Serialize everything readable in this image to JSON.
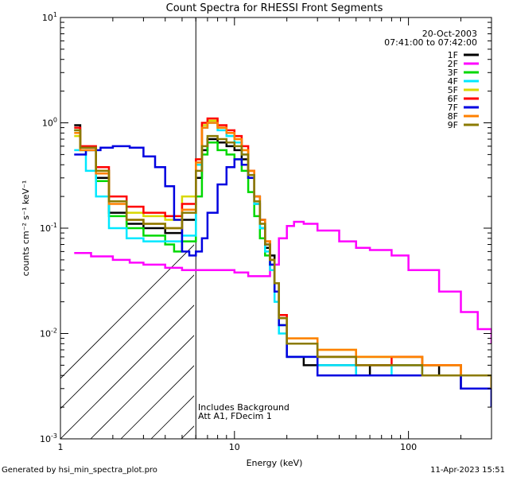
{
  "chart_data": {
    "type": "line",
    "title": "Count Spectra for RHESSI Front Segments",
    "xlabel": "Energy (keV)",
    "ylabel": "counts cm⁻² s⁻¹ keV⁻¹",
    "xscale": "log",
    "yscale": "log",
    "xlim": [
      1,
      300
    ],
    "ylim": [
      0.001,
      10
    ],
    "x_ticks": [
      {
        "v": 1,
        "label": "1"
      },
      {
        "v": 10,
        "label": "10"
      },
      {
        "v": 100,
        "label": "100"
      }
    ],
    "y_ticks": [
      {
        "v": 0.001,
        "base": "10",
        "exp": "-3"
      },
      {
        "v": 0.01,
        "base": "10",
        "exp": "-2"
      },
      {
        "v": 0.1,
        "base": "10",
        "exp": "-1"
      },
      {
        "v": 1,
        "base": "10",
        "exp": "0"
      },
      {
        "v": 10,
        "base": "10",
        "exp": "1"
      }
    ],
    "date": "20-Oct-2003",
    "time_range": "07:41:00 to 07:42:00",
    "threshold_energy_keV": 6,
    "hatched_region_keV": [
      1,
      6
    ],
    "annotations": [
      "Includes Background",
      "Att A1, FDecim 1"
    ],
    "legend_position": "top-right",
    "series": [
      {
        "name": "1F",
        "color": "#000000",
        "values": [
          [
            1.2,
            0.95
          ],
          [
            1.3,
            0.58
          ],
          [
            1.6,
            0.3
          ],
          [
            1.9,
            0.14
          ],
          [
            2.4,
            0.11
          ],
          [
            3.0,
            0.1
          ],
          [
            4.0,
            0.09
          ],
          [
            5.0,
            0.12
          ],
          [
            6.0,
            0.3
          ],
          [
            6.5,
            0.55
          ],
          [
            7.0,
            0.7
          ],
          [
            8.0,
            0.65
          ],
          [
            9.0,
            0.6
          ],
          [
            10.0,
            0.55
          ],
          [
            11.0,
            0.45
          ],
          [
            12.0,
            0.3
          ],
          [
            13.0,
            0.17
          ],
          [
            14.0,
            0.1
          ],
          [
            15.0,
            0.065
          ],
          [
            16.0,
            0.055
          ],
          [
            17.0,
            0.03
          ],
          [
            18.0,
            0.014
          ],
          [
            20.0,
            0.006
          ],
          [
            25.0,
            0.005
          ],
          [
            30.0,
            0.005
          ],
          [
            40.0,
            0.005
          ],
          [
            50.0,
            0.004
          ],
          [
            60.0,
            0.005
          ],
          [
            80.0,
            0.005
          ],
          [
            100.0,
            0.005
          ],
          [
            150.0,
            0.004
          ],
          [
            200.0,
            0.003
          ],
          [
            250.0,
            0.003
          ],
          [
            300.0,
            0.002
          ]
        ]
      },
      {
        "name": "2F",
        "color": "#ff00ff",
        "values": [
          [
            1.2,
            0.058
          ],
          [
            1.5,
            0.054
          ],
          [
            2.0,
            0.05
          ],
          [
            2.5,
            0.047
          ],
          [
            3.0,
            0.045
          ],
          [
            4.0,
            0.042
          ],
          [
            5.0,
            0.04
          ],
          [
            6.0,
            0.04
          ],
          [
            7.0,
            0.04
          ],
          [
            8.0,
            0.04
          ],
          [
            9.0,
            0.04
          ],
          [
            10.0,
            0.038
          ],
          [
            12.0,
            0.035
          ],
          [
            14.0,
            0.035
          ],
          [
            16.0,
            0.045
          ],
          [
            18.0,
            0.08
          ],
          [
            20.0,
            0.105
          ],
          [
            22.0,
            0.115
          ],
          [
            25.0,
            0.11
          ],
          [
            30.0,
            0.095
          ],
          [
            40.0,
            0.075
          ],
          [
            50.0,
            0.065
          ],
          [
            60.0,
            0.062
          ],
          [
            80.0,
            0.055
          ],
          [
            100.0,
            0.04
          ],
          [
            150.0,
            0.025
          ],
          [
            200.0,
            0.016
          ],
          [
            250.0,
            0.011
          ],
          [
            300.0,
            0.008
          ]
        ]
      },
      {
        "name": "3F",
        "color": "#00d800",
        "values": [
          [
            1.2,
            0.85
          ],
          [
            1.3,
            0.55
          ],
          [
            1.6,
            0.28
          ],
          [
            1.9,
            0.13
          ],
          [
            2.4,
            0.1
          ],
          [
            3.0,
            0.085
          ],
          [
            4.0,
            0.07
          ],
          [
            4.5,
            0.06
          ],
          [
            5.0,
            0.075
          ],
          [
            6.0,
            0.2
          ],
          [
            6.5,
            0.5
          ],
          [
            7.0,
            0.65
          ],
          [
            8.0,
            0.55
          ],
          [
            9.0,
            0.5
          ],
          [
            10.0,
            0.45
          ],
          [
            11.0,
            0.35
          ],
          [
            12.0,
            0.22
          ],
          [
            13.0,
            0.13
          ],
          [
            14.0,
            0.08
          ],
          [
            15.0,
            0.055
          ],
          [
            16.0,
            0.045
          ],
          [
            17.0,
            0.025
          ],
          [
            18.0,
            0.012
          ],
          [
            20.0,
            0.008
          ],
          [
            30.0,
            0.006
          ],
          [
            50.0,
            0.006
          ],
          [
            80.0,
            0.006
          ],
          [
            120.0,
            0.005
          ],
          [
            200.0,
            0.004
          ],
          [
            300.0,
            0.003
          ]
        ]
      },
      {
        "name": "4F",
        "color": "#00e8ff",
        "values": [
          [
            1.2,
            0.55
          ],
          [
            1.4,
            0.35
          ],
          [
            1.6,
            0.2
          ],
          [
            1.9,
            0.1
          ],
          [
            2.4,
            0.08
          ],
          [
            3.0,
            0.075
          ],
          [
            4.0,
            0.075
          ],
          [
            5.0,
            0.085
          ],
          [
            6.0,
            0.4
          ],
          [
            6.5,
            0.9
          ],
          [
            7.0,
            1.0
          ],
          [
            8.0,
            0.85
          ],
          [
            9.0,
            0.75
          ],
          [
            10.0,
            0.65
          ],
          [
            11.0,
            0.5
          ],
          [
            12.0,
            0.3
          ],
          [
            13.0,
            0.17
          ],
          [
            14.0,
            0.1
          ],
          [
            15.0,
            0.06
          ],
          [
            16.0,
            0.04
          ],
          [
            17.0,
            0.02
          ],
          [
            18.0,
            0.01
          ],
          [
            20.0,
            0.006
          ],
          [
            30.0,
            0.005
          ],
          [
            50.0,
            0.004
          ],
          [
            80.0,
            0.005
          ],
          [
            120.0,
            0.004
          ],
          [
            200.0,
            0.004
          ],
          [
            300.0,
            0.003
          ]
        ]
      },
      {
        "name": "5F",
        "color": "#d8d800",
        "values": [
          [
            1.2,
            0.75
          ],
          [
            1.3,
            0.58
          ],
          [
            1.6,
            0.35
          ],
          [
            1.9,
            0.18
          ],
          [
            2.4,
            0.14
          ],
          [
            3.0,
            0.13
          ],
          [
            4.0,
            0.12
          ],
          [
            5.0,
            0.2
          ],
          [
            6.0,
            0.45
          ],
          [
            6.5,
            0.95
          ],
          [
            7.0,
            1.05
          ],
          [
            8.0,
            0.9
          ],
          [
            9.0,
            0.8
          ],
          [
            10.0,
            0.7
          ],
          [
            11.0,
            0.55
          ],
          [
            12.0,
            0.35
          ],
          [
            13.0,
            0.2
          ],
          [
            14.0,
            0.12
          ],
          [
            15.0,
            0.075
          ],
          [
            16.0,
            0.05
          ],
          [
            17.0,
            0.03
          ],
          [
            18.0,
            0.015
          ],
          [
            20.0,
            0.009
          ],
          [
            30.0,
            0.007
          ],
          [
            50.0,
            0.006
          ],
          [
            80.0,
            0.006
          ],
          [
            120.0,
            0.005
          ],
          [
            200.0,
            0.004
          ],
          [
            300.0,
            0.003
          ]
        ]
      },
      {
        "name": "6F",
        "color": "#ff0000",
        "values": [
          [
            1.2,
            0.9
          ],
          [
            1.3,
            0.6
          ],
          [
            1.6,
            0.38
          ],
          [
            1.9,
            0.2
          ],
          [
            2.4,
            0.16
          ],
          [
            3.0,
            0.14
          ],
          [
            4.0,
            0.13
          ],
          [
            5.0,
            0.17
          ],
          [
            6.0,
            0.45
          ],
          [
            6.5,
            1.0
          ],
          [
            7.0,
            1.1
          ],
          [
            8.0,
            0.95
          ],
          [
            9.0,
            0.85
          ],
          [
            10.0,
            0.75
          ],
          [
            11.0,
            0.6
          ],
          [
            12.0,
            0.35
          ],
          [
            13.0,
            0.2
          ],
          [
            14.0,
            0.12
          ],
          [
            15.0,
            0.075
          ],
          [
            16.0,
            0.05
          ],
          [
            17.0,
            0.03
          ],
          [
            18.0,
            0.015
          ],
          [
            20.0,
            0.008
          ],
          [
            30.0,
            0.006
          ],
          [
            50.0,
            0.005
          ],
          [
            80.0,
            0.006
          ],
          [
            120.0,
            0.005
          ],
          [
            200.0,
            0.004
          ],
          [
            300.0,
            0.003
          ]
        ]
      },
      {
        "name": "7F",
        "color": "#0000e0",
        "values": [
          [
            1.2,
            0.5
          ],
          [
            1.4,
            0.55
          ],
          [
            1.7,
            0.58
          ],
          [
            2.0,
            0.6
          ],
          [
            2.5,
            0.58
          ],
          [
            3.0,
            0.48
          ],
          [
            3.5,
            0.38
          ],
          [
            4.0,
            0.25
          ],
          [
            4.5,
            0.12
          ],
          [
            5.0,
            0.06
          ],
          [
            5.5,
            0.055
          ],
          [
            6.0,
            0.06
          ],
          [
            6.5,
            0.08
          ],
          [
            7.0,
            0.14
          ],
          [
            8.0,
            0.26
          ],
          [
            9.0,
            0.38
          ],
          [
            10.0,
            0.45
          ],
          [
            11.0,
            0.4
          ],
          [
            12.0,
            0.3
          ],
          [
            13.0,
            0.2
          ],
          [
            14.0,
            0.12
          ],
          [
            15.0,
            0.07
          ],
          [
            16.0,
            0.045
          ],
          [
            17.0,
            0.025
          ],
          [
            18.0,
            0.012
          ],
          [
            20.0,
            0.006
          ],
          [
            30.0,
            0.004
          ],
          [
            50.0,
            0.004
          ],
          [
            80.0,
            0.004
          ],
          [
            120.0,
            0.004
          ],
          [
            200.0,
            0.003
          ],
          [
            300.0,
            0.002
          ]
        ]
      },
      {
        "name": "8F",
        "color": "#ff8000",
        "values": [
          [
            1.2,
            0.8
          ],
          [
            1.3,
            0.55
          ],
          [
            1.6,
            0.33
          ],
          [
            1.9,
            0.17
          ],
          [
            2.4,
            0.12
          ],
          [
            3.0,
            0.11
          ],
          [
            4.0,
            0.1
          ],
          [
            5.0,
            0.15
          ],
          [
            6.0,
            0.42
          ],
          [
            6.5,
            0.9
          ],
          [
            7.0,
            1.0
          ],
          [
            8.0,
            0.9
          ],
          [
            9.0,
            0.8
          ],
          [
            10.0,
            0.7
          ],
          [
            11.0,
            0.55
          ],
          [
            12.0,
            0.35
          ],
          [
            13.0,
            0.2
          ],
          [
            14.0,
            0.12
          ],
          [
            15.0,
            0.075
          ],
          [
            16.0,
            0.05
          ],
          [
            17.0,
            0.03
          ],
          [
            18.0,
            0.014
          ],
          [
            20.0,
            0.009
          ],
          [
            30.0,
            0.007
          ],
          [
            50.0,
            0.006
          ],
          [
            80.0,
            0.006
          ],
          [
            120.0,
            0.005
          ],
          [
            200.0,
            0.004
          ],
          [
            300.0,
            0.003
          ]
        ]
      },
      {
        "name": "9F",
        "color": "#8b7a00",
        "values": [
          [
            1.2,
            0.85
          ],
          [
            1.3,
            0.58
          ],
          [
            1.6,
            0.35
          ],
          [
            1.9,
            0.18
          ],
          [
            2.4,
            0.12
          ],
          [
            3.0,
            0.11
          ],
          [
            4.0,
            0.1
          ],
          [
            5.0,
            0.14
          ],
          [
            6.0,
            0.35
          ],
          [
            6.5,
            0.6
          ],
          [
            7.0,
            0.75
          ],
          [
            8.0,
            0.7
          ],
          [
            9.0,
            0.65
          ],
          [
            10.0,
            0.6
          ],
          [
            11.0,
            0.5
          ],
          [
            12.0,
            0.32
          ],
          [
            13.0,
            0.18
          ],
          [
            14.0,
            0.11
          ],
          [
            15.0,
            0.07
          ],
          [
            16.0,
            0.05
          ],
          [
            17.0,
            0.03
          ],
          [
            18.0,
            0.014
          ],
          [
            20.0,
            0.008
          ],
          [
            30.0,
            0.006
          ],
          [
            50.0,
            0.005
          ],
          [
            80.0,
            0.005
          ],
          [
            120.0,
            0.004
          ],
          [
            200.0,
            0.004
          ],
          [
            300.0,
            0.003
          ]
        ]
      }
    ]
  },
  "footer": {
    "left": "Generated by hsi_min_spectra_plot.pro",
    "right": "11-Apr-2023 15:51"
  }
}
